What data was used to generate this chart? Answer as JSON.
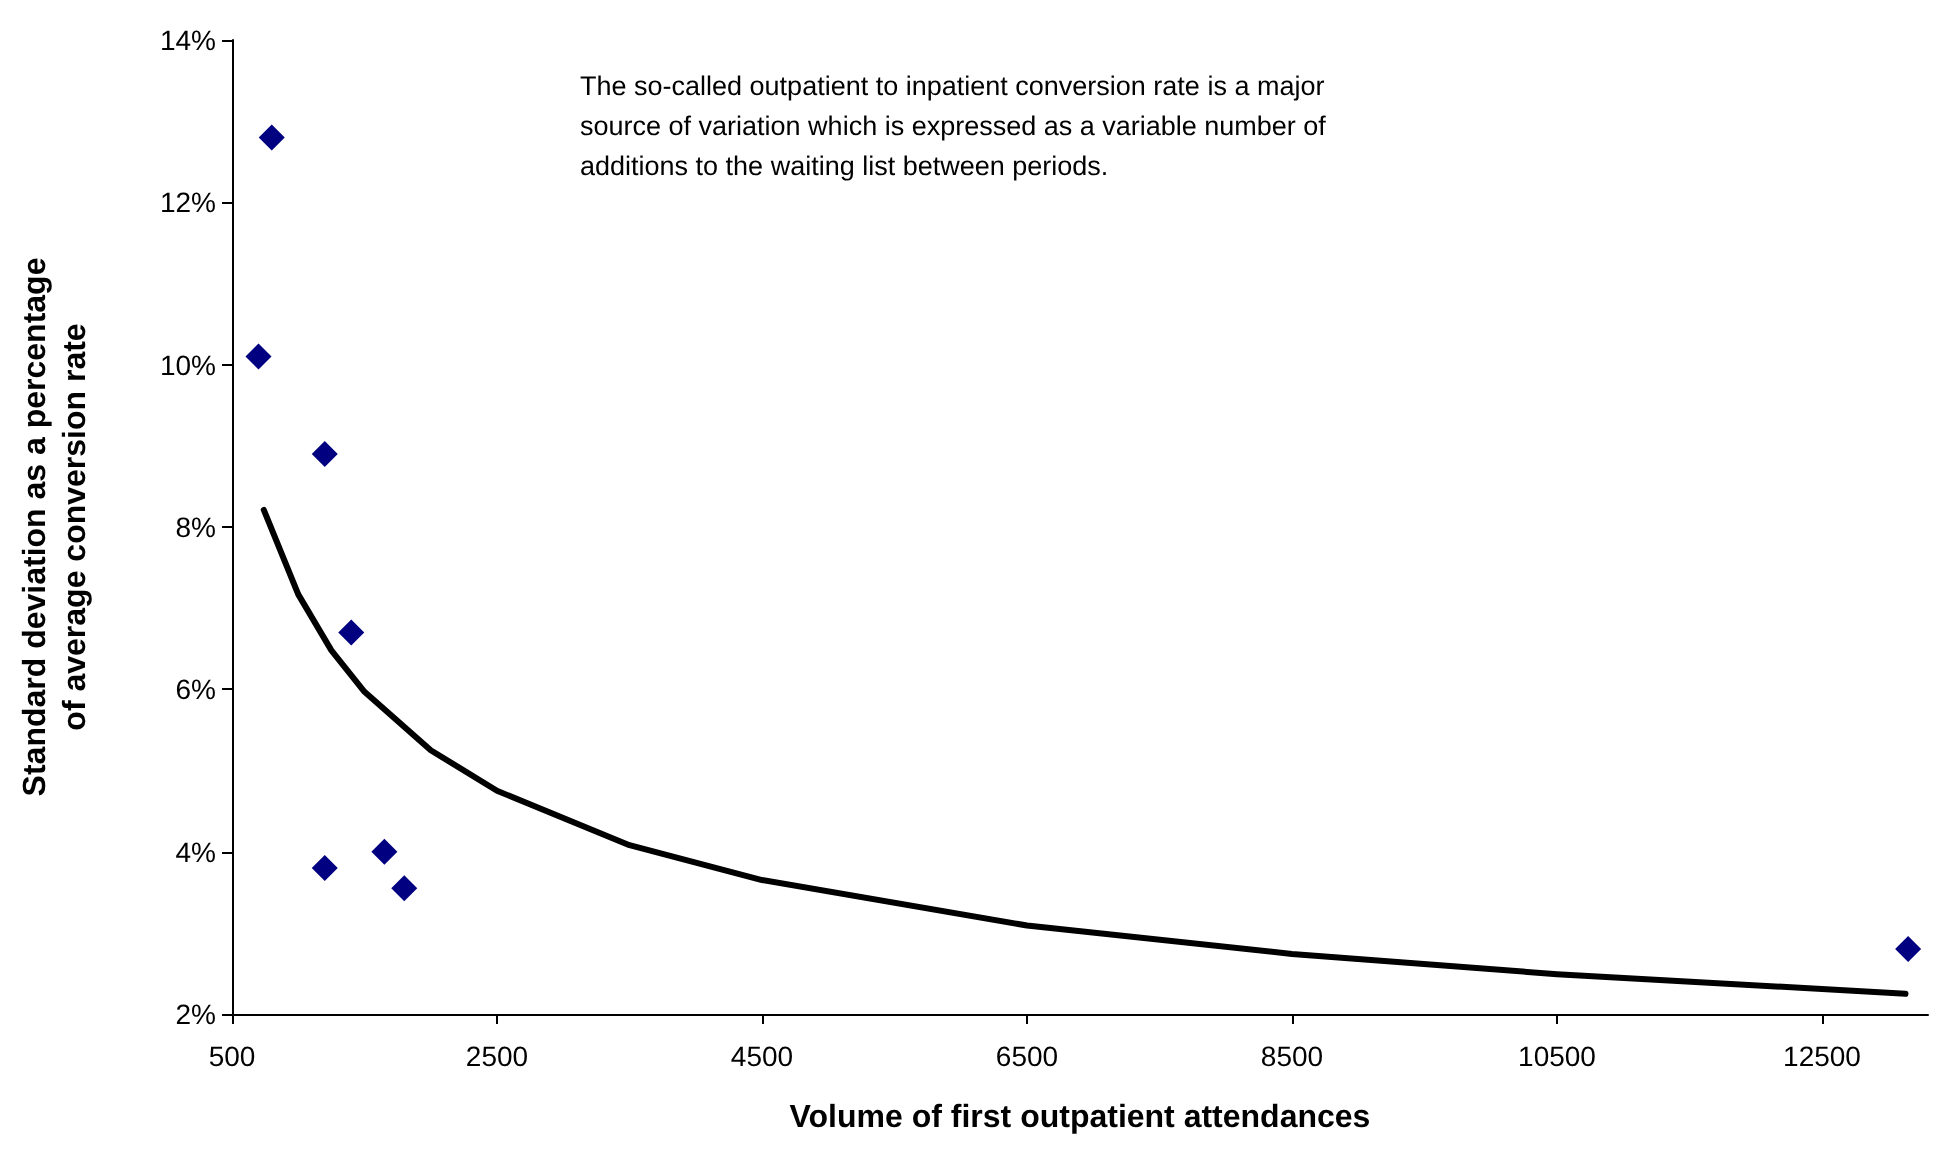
{
  "chart_data": {
    "type": "scatter",
    "xlabel": "Volume of first outpatient attendances",
    "ylabel": "Standard deviation as a percentage of average conversion rate",
    "annotations": [
      "The so-called outpatient to inpatient conversion rate is a major source of variation which is expressed as a variable number of additions to the waiting list between periods."
    ],
    "series": [
      {
        "color": "#000080",
        "marker": "diamond",
        "x": [
          800,
          700,
          1200,
          1400,
          1200,
          1650,
          1800,
          13150
        ],
        "values": [
          12.8,
          10.1,
          8.9,
          6.7,
          3.8,
          4.0,
          3.55,
          2.8
        ]
      },
      {
        "type": "line",
        "color": "#000000",
        "marker": "none",
        "x": [
          740,
          1000,
          1250,
          1500,
          2000,
          2500,
          3500,
          4500,
          6500,
          8500,
          10500,
          13130
        ],
        "values": [
          8.21,
          7.17,
          6.48,
          5.97,
          5.25,
          4.75,
          4.08,
          3.65,
          3.09,
          2.74,
          2.49,
          2.25
        ]
      }
    ],
    "xlim": [
      500,
      13300
    ],
    "xticks": [
      500,
      2500,
      4500,
      6500,
      8500,
      10500,
      12500
    ],
    "ylim": [
      2,
      14
    ],
    "yticks": [
      {
        "value": 2,
        "label": "2%"
      },
      {
        "value": 4,
        "label": "4%"
      },
      {
        "value": 6,
        "label": "6%"
      },
      {
        "value": 8,
        "label": "8%"
      },
      {
        "value": 10,
        "label": "10%"
      },
      {
        "value": 12,
        "label": "12%"
      },
      {
        "value": 14,
        "label": "14%"
      }
    ],
    "grid": false
  }
}
